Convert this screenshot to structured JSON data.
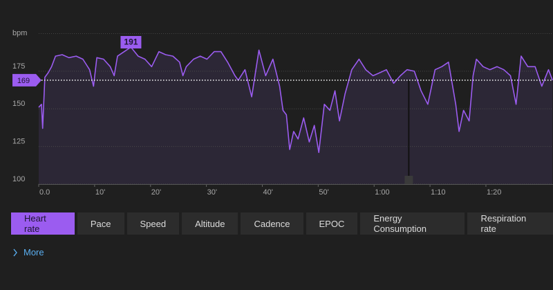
{
  "chart_data": {
    "type": "line",
    "y_label": "bpm",
    "color": "#9b5cf0",
    "x": [
      0,
      0.5,
      0.7,
      1.1,
      1.7,
      2.3,
      3.0,
      4.2,
      5.4,
      6.7,
      7.9,
      9.1,
      9.8,
      10.4,
      11.6,
      12.8,
      13.5,
      14.1,
      15.3,
      16.5,
      17.8,
      19.0,
      20.2,
      21.5,
      22.7,
      24.0,
      25.2,
      25.8,
      26.4,
      27.7,
      28.9,
      30.1,
      31.4,
      32.6,
      33.8,
      35.1,
      35.7,
      36.9,
      38.1,
      39.4,
      40.6,
      41.9,
      43.1,
      43.7,
      44.3,
      44.9,
      45.6,
      46.4,
      47.4,
      48.4,
      49.3,
      50.1,
      51.1,
      52.1,
      53.0,
      53.8,
      54.8,
      56.0,
      57.3,
      58.5,
      59.8,
      61.0,
      62.2,
      63.5,
      64.7,
      65.9,
      67.2,
      68.4,
      69.6,
      70.9,
      72.1,
      73.3,
      74.6,
      75.2,
      76.0,
      77.0,
      77.7,
      78.3,
      79.5,
      80.7,
      82.0,
      83.2,
      84.4,
      85.4,
      86.3,
      87.5,
      88.8,
      90.0,
      91.2,
      91.9
    ],
    "values": [
      151,
      153,
      137,
      171,
      174,
      178,
      185,
      186,
      184,
      185,
      183,
      176,
      165,
      184,
      183,
      178,
      172,
      185,
      188,
      191,
      185,
      183,
      178,
      188,
      186,
      185,
      181,
      172,
      178,
      183,
      185,
      183,
      188,
      188,
      181,
      172,
      169,
      176,
      158,
      189,
      172,
      183,
      165,
      149,
      146,
      123,
      135,
      130,
      144,
      128,
      139,
      121,
      153,
      149,
      162,
      142,
      160,
      176,
      183,
      176,
      172,
      174,
      176,
      167,
      172,
      176,
      175,
      162,
      153,
      176,
      178,
      181,
      153,
      135,
      149,
      142,
      172,
      183,
      178,
      176,
      178,
      176,
      172,
      153,
      185,
      178,
      178,
      165,
      176,
      169
    ],
    "xlim": [
      0,
      92
    ],
    "ylim": [
      100,
      200
    ],
    "xticks": [
      {
        "value": 0,
        "label": "0.0"
      },
      {
        "value": 10,
        "label": "10'"
      },
      {
        "value": 20,
        "label": "20'"
      },
      {
        "value": 30,
        "label": "30'"
      },
      {
        "value": 40,
        "label": "40'"
      },
      {
        "value": 50,
        "label": "50'"
      },
      {
        "value": 60,
        "label": "1:00"
      },
      {
        "value": 70,
        "label": "1:10"
      },
      {
        "value": 80,
        "label": "1:20"
      }
    ],
    "yticks": [
      100,
      125,
      150,
      175
    ],
    "grid": true,
    "max": 191,
    "average": 169,
    "cursor_x": 66.2
  },
  "tabs": [
    {
      "label": "Heart rate",
      "selected": true
    },
    {
      "label": "Pace"
    },
    {
      "label": "Speed"
    },
    {
      "label": "Altitude"
    },
    {
      "label": "Cadence"
    },
    {
      "label": "EPOC"
    },
    {
      "label": "Energy Consumption"
    },
    {
      "label": "Respiration rate"
    }
  ],
  "more": "More"
}
